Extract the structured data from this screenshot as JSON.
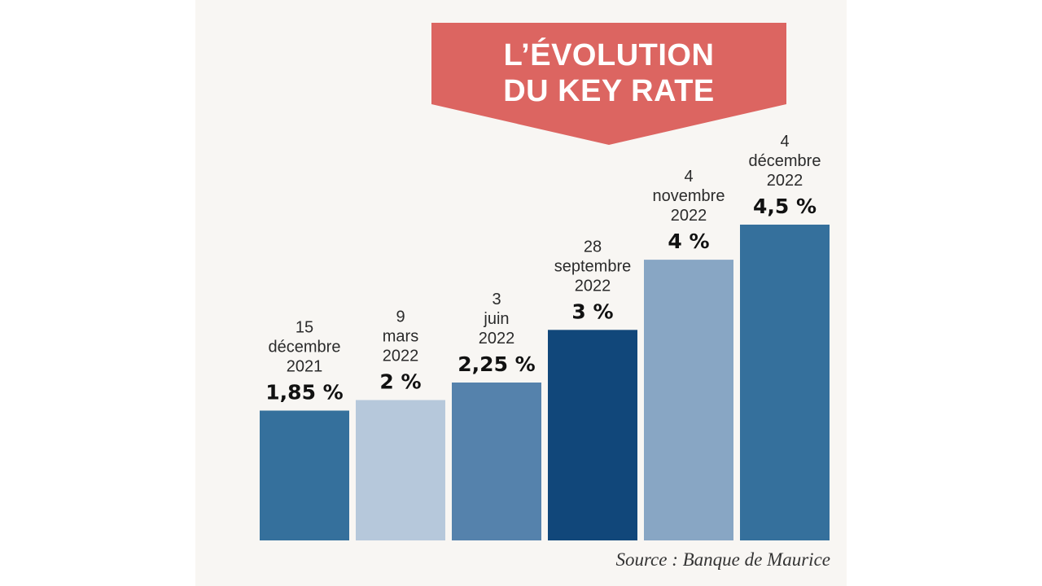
{
  "title": {
    "line1": "L’ÉVOLUTION",
    "line2": "DU KEY RATE"
  },
  "source": "Source : Banque de Maurice",
  "colors": {
    "banner": "#dc6561",
    "background": "#f8f6f3"
  },
  "chart_data": {
    "type": "bar",
    "title": "L’ÉVOLUTION DU KEY RATE",
    "xlabel": "",
    "ylabel": "",
    "ylim": [
      0,
      4.5
    ],
    "grid": false,
    "categories": [
      {
        "date_lines": [
          "15",
          "décembre",
          "2021"
        ],
        "value": 1.85,
        "value_label": "1,85 %",
        "color": "#35709c"
      },
      {
        "date_lines": [
          "9",
          "mars",
          "2022"
        ],
        "value": 2,
        "value_label": "2 %",
        "color": "#b6c8db"
      },
      {
        "date_lines": [
          "3",
          "juin",
          "2022"
        ],
        "value": 2.25,
        "value_label": "2,25 %",
        "color": "#5582ac"
      },
      {
        "date_lines": [
          "28",
          "septembre",
          "2022"
        ],
        "value": 3,
        "value_label": "3 %",
        "color": "#11477a"
      },
      {
        "date_lines": [
          "4",
          "novembre",
          "2022"
        ],
        "value": 4,
        "value_label": "4 %",
        "color": "#88a6c4"
      },
      {
        "date_lines": [
          "4",
          "décembre",
          "2022"
        ],
        "value": 4.5,
        "value_label": "4,5 %",
        "color": "#35709c"
      }
    ]
  }
}
